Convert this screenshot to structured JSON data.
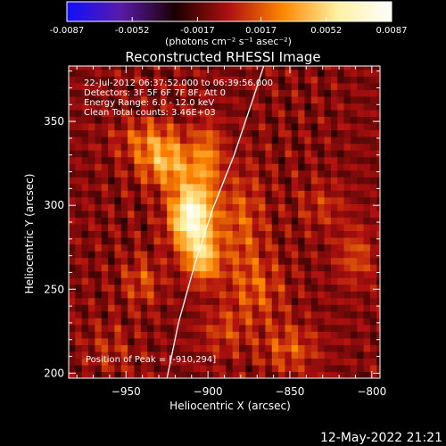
{
  "colorbar": {
    "tick_labels": [
      "-0.0087",
      "-0.0052",
      "-0.0017",
      "0.0017",
      "0.0052",
      "0.0087"
    ],
    "ticks": [
      -0.0087,
      -0.0052,
      -0.0017,
      0.0017,
      0.0052,
      0.0087
    ],
    "range": [
      -0.0087,
      0.0087
    ],
    "unit_label": "(photons cm⁻² s⁻¹ asec⁻²)",
    "colors": [
      "#1010ff",
      "#5a1aa8",
      "#1a0000",
      "#b01010",
      "#ff8800",
      "#fff0a0",
      "#ffffff"
    ]
  },
  "chart_data": {
    "type": "heatmap",
    "title": "Reconstructed RHESSI Image",
    "xlabel": "Heliocentric X (arcsec)",
    "ylabel": "Heliocentric Y (arcsec)",
    "xlim": [
      -985,
      -795
    ],
    "ylim": [
      197,
      383
    ],
    "x_ticks": [
      -950,
      -900,
      -850,
      -800
    ],
    "y_ticks": [
      200,
      250,
      300,
      350
    ],
    "x_tick_labels": [
      "−950",
      "−900",
      "−850",
      "−800"
    ],
    "y_tick_labels": [
      "200",
      "250",
      "300",
      "350"
    ],
    "annotations": [
      "22-Jul-2012 06:37:52.000 to 06:39:56.000",
      "Detectors: 3F 5F 6F 7F 8F, Att 0",
      "Energy Range: 6.0 - 12.0 keV",
      "Clean     Total counts: 3.46E+03"
    ],
    "peak_label": "Position of Peak = [-910,294]",
    "peak": [
      -910,
      294
    ],
    "sources": [
      {
        "x": -910,
        "y": 294,
        "amp": 0.0087,
        "sx": 9,
        "sy": 14
      },
      {
        "x": -903,
        "y": 268,
        "amp": 0.0048,
        "sx": 7,
        "sy": 10
      },
      {
        "x": -925,
        "y": 325,
        "amp": 0.0045,
        "sx": 12,
        "sy": 9
      },
      {
        "x": -900,
        "y": 330,
        "amp": 0.0032,
        "sx": 6,
        "sy": 14
      },
      {
        "x": -935,
        "y": 340,
        "amp": 0.0028,
        "sx": 14,
        "sy": 8
      },
      {
        "x": -880,
        "y": 290,
        "amp": 0.0025,
        "sx": 10,
        "sy": 22
      },
      {
        "x": -940,
        "y": 255,
        "amp": 0.0022,
        "sx": 8,
        "sy": 10
      },
      {
        "x": -870,
        "y": 250,
        "amp": 0.0022,
        "sx": 12,
        "sy": 14
      },
      {
        "x": -850,
        "y": 215,
        "amp": 0.0024,
        "sx": 12,
        "sy": 10
      },
      {
        "x": -810,
        "y": 270,
        "amp": 0.0022,
        "sx": 8,
        "sy": 12
      },
      {
        "x": -830,
        "y": 300,
        "amp": 0.0015,
        "sx": 10,
        "sy": 10
      },
      {
        "x": -890,
        "y": 225,
        "amp": 0.0018,
        "sx": 10,
        "sy": 10
      },
      {
        "x": -960,
        "y": 215,
        "amp": 0.0012,
        "sx": 10,
        "sy": 10
      }
    ],
    "limb_curve": [
      [
        -925,
        197
      ],
      [
        -918,
        230
      ],
      [
        -908,
        265
      ],
      [
        -897,
        298
      ],
      [
        -884,
        330
      ],
      [
        -872,
        365
      ],
      [
        -866,
        383
      ]
    ]
  },
  "timestamp": "12-May-2022 21:21"
}
